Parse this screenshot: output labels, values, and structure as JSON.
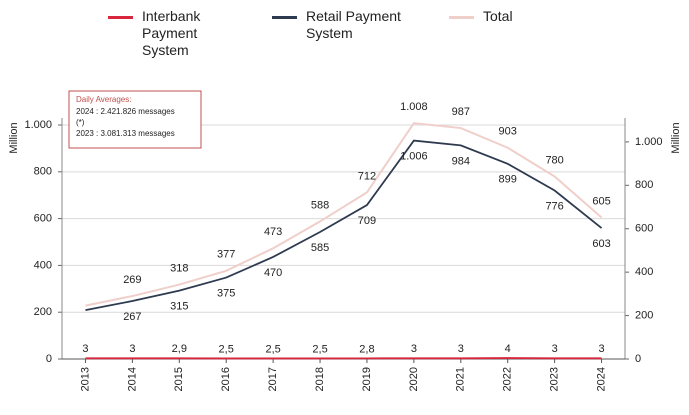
{
  "chart_data": {
    "type": "line",
    "categories": [
      "2013",
      "2014",
      "2015",
      "2016",
      "2017",
      "2018",
      "2019",
      "2020",
      "2021",
      "2022",
      "2023",
      "2024"
    ],
    "series": [
      {
        "name": "Interbank Payment System",
        "color": "#d7263d",
        "values": [
          3,
          3,
          2.9,
          2.5,
          2.5,
          2.5,
          2.8,
          3,
          3,
          4,
          3,
          3
        ],
        "value_labels": [
          "3",
          "3",
          "2,9",
          "2,5",
          "2,5",
          "2,5",
          "2,8",
          "3",
          "3",
          "4",
          "3",
          "3"
        ]
      },
      {
        "name": "Retail Payment System",
        "color": "#2e3a4f",
        "axis": "y2",
        "values": [
          225,
          267,
          315,
          375,
          470,
          585,
          709,
          1006,
          984,
          899,
          776,
          603
        ],
        "value_labels": [
          null,
          "267",
          "315",
          "375",
          "470",
          "585",
          "709",
          "1.006",
          "984",
          "899",
          "776",
          "603"
        ]
      },
      {
        "name": "Total",
        "color": "#f0cfca",
        "values": [
          228,
          269,
          318,
          377,
          473,
          588,
          712,
          1008,
          987,
          903,
          780,
          605
        ],
        "value_labels": [
          null,
          "269",
          "318",
          "377",
          "473",
          "588",
          "712",
          "1.008",
          "987",
          "903",
          "780",
          "605"
        ]
      }
    ],
    "ylabel": "Million",
    "y2label": "Million",
    "ylim": [
      0,
      1030
    ],
    "yticks": [
      0,
      200,
      400,
      600,
      800,
      {
        "value": 1000,
        "label": "1.000"
      }
    ],
    "y2lim": [
      0,
      1110
    ],
    "y2ticks": [
      0,
      200,
      400,
      600,
      800,
      {
        "value": 1000,
        "label": "1.000"
      }
    ],
    "grid": true,
    "annotation": {
      "title": "Daily Averages:",
      "lines": [
        "2024 :  2.421.826 messages",
        "(*)",
        "2023 :  3.081.313 messages"
      ]
    }
  }
}
